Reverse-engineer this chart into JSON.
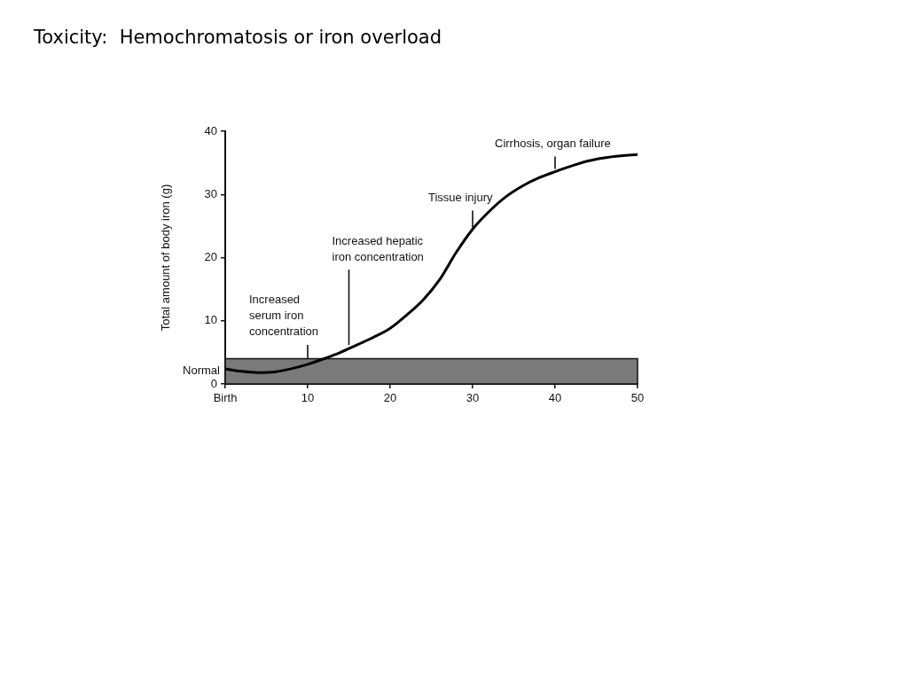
{
  "chart_data": {
    "type": "line",
    "title": "Toxicity:  Hemochromatosis or iron overload",
    "ylabel": "Total amount of body iron (g)",
    "x": [
      0,
      2,
      4,
      6,
      8,
      10,
      12,
      14,
      16,
      18,
      20,
      22,
      24,
      26,
      28,
      30,
      32,
      34,
      36,
      38,
      40,
      42,
      44,
      46,
      48,
      50
    ],
    "series": [
      {
        "color": "#000000",
        "values": [
          2.4,
          2.0,
          1.8,
          1.9,
          2.4,
          3.1,
          4.0,
          5.0,
          6.2,
          7.4,
          8.8,
          10.9,
          13.3,
          16.5,
          20.8,
          24.5,
          27.3,
          29.6,
          31.3,
          32.6,
          33.6,
          34.5,
          35.3,
          35.8,
          36.1,
          36.3
        ]
      }
    ],
    "xlim": [
      0,
      50
    ],
    "xticks": [
      {
        "value": 0,
        "label": "Birth"
      },
      10,
      20,
      30,
      40,
      50
    ],
    "ylim": [
      0,
      40
    ],
    "yticks": [
      0,
      10,
      20,
      30,
      40
    ],
    "bands": [
      {
        "axis": "y",
        "from": 0,
        "to": 4,
        "label": "Normal",
        "color": "#7a7a7a"
      }
    ],
    "annotations": [
      {
        "text": "Increased\nserum iron\nconcentration",
        "x": 10,
        "y": 3.1
      },
      {
        "text": "Increased hepatic\niron concentration",
        "x": 15,
        "y": 5.6
      },
      {
        "text": "Tissue injury",
        "x": 30,
        "y": 24.5
      },
      {
        "text": "Cirrhosis, organ failure",
        "x": 40,
        "y": 33.6
      }
    ],
    "marker": "none"
  }
}
